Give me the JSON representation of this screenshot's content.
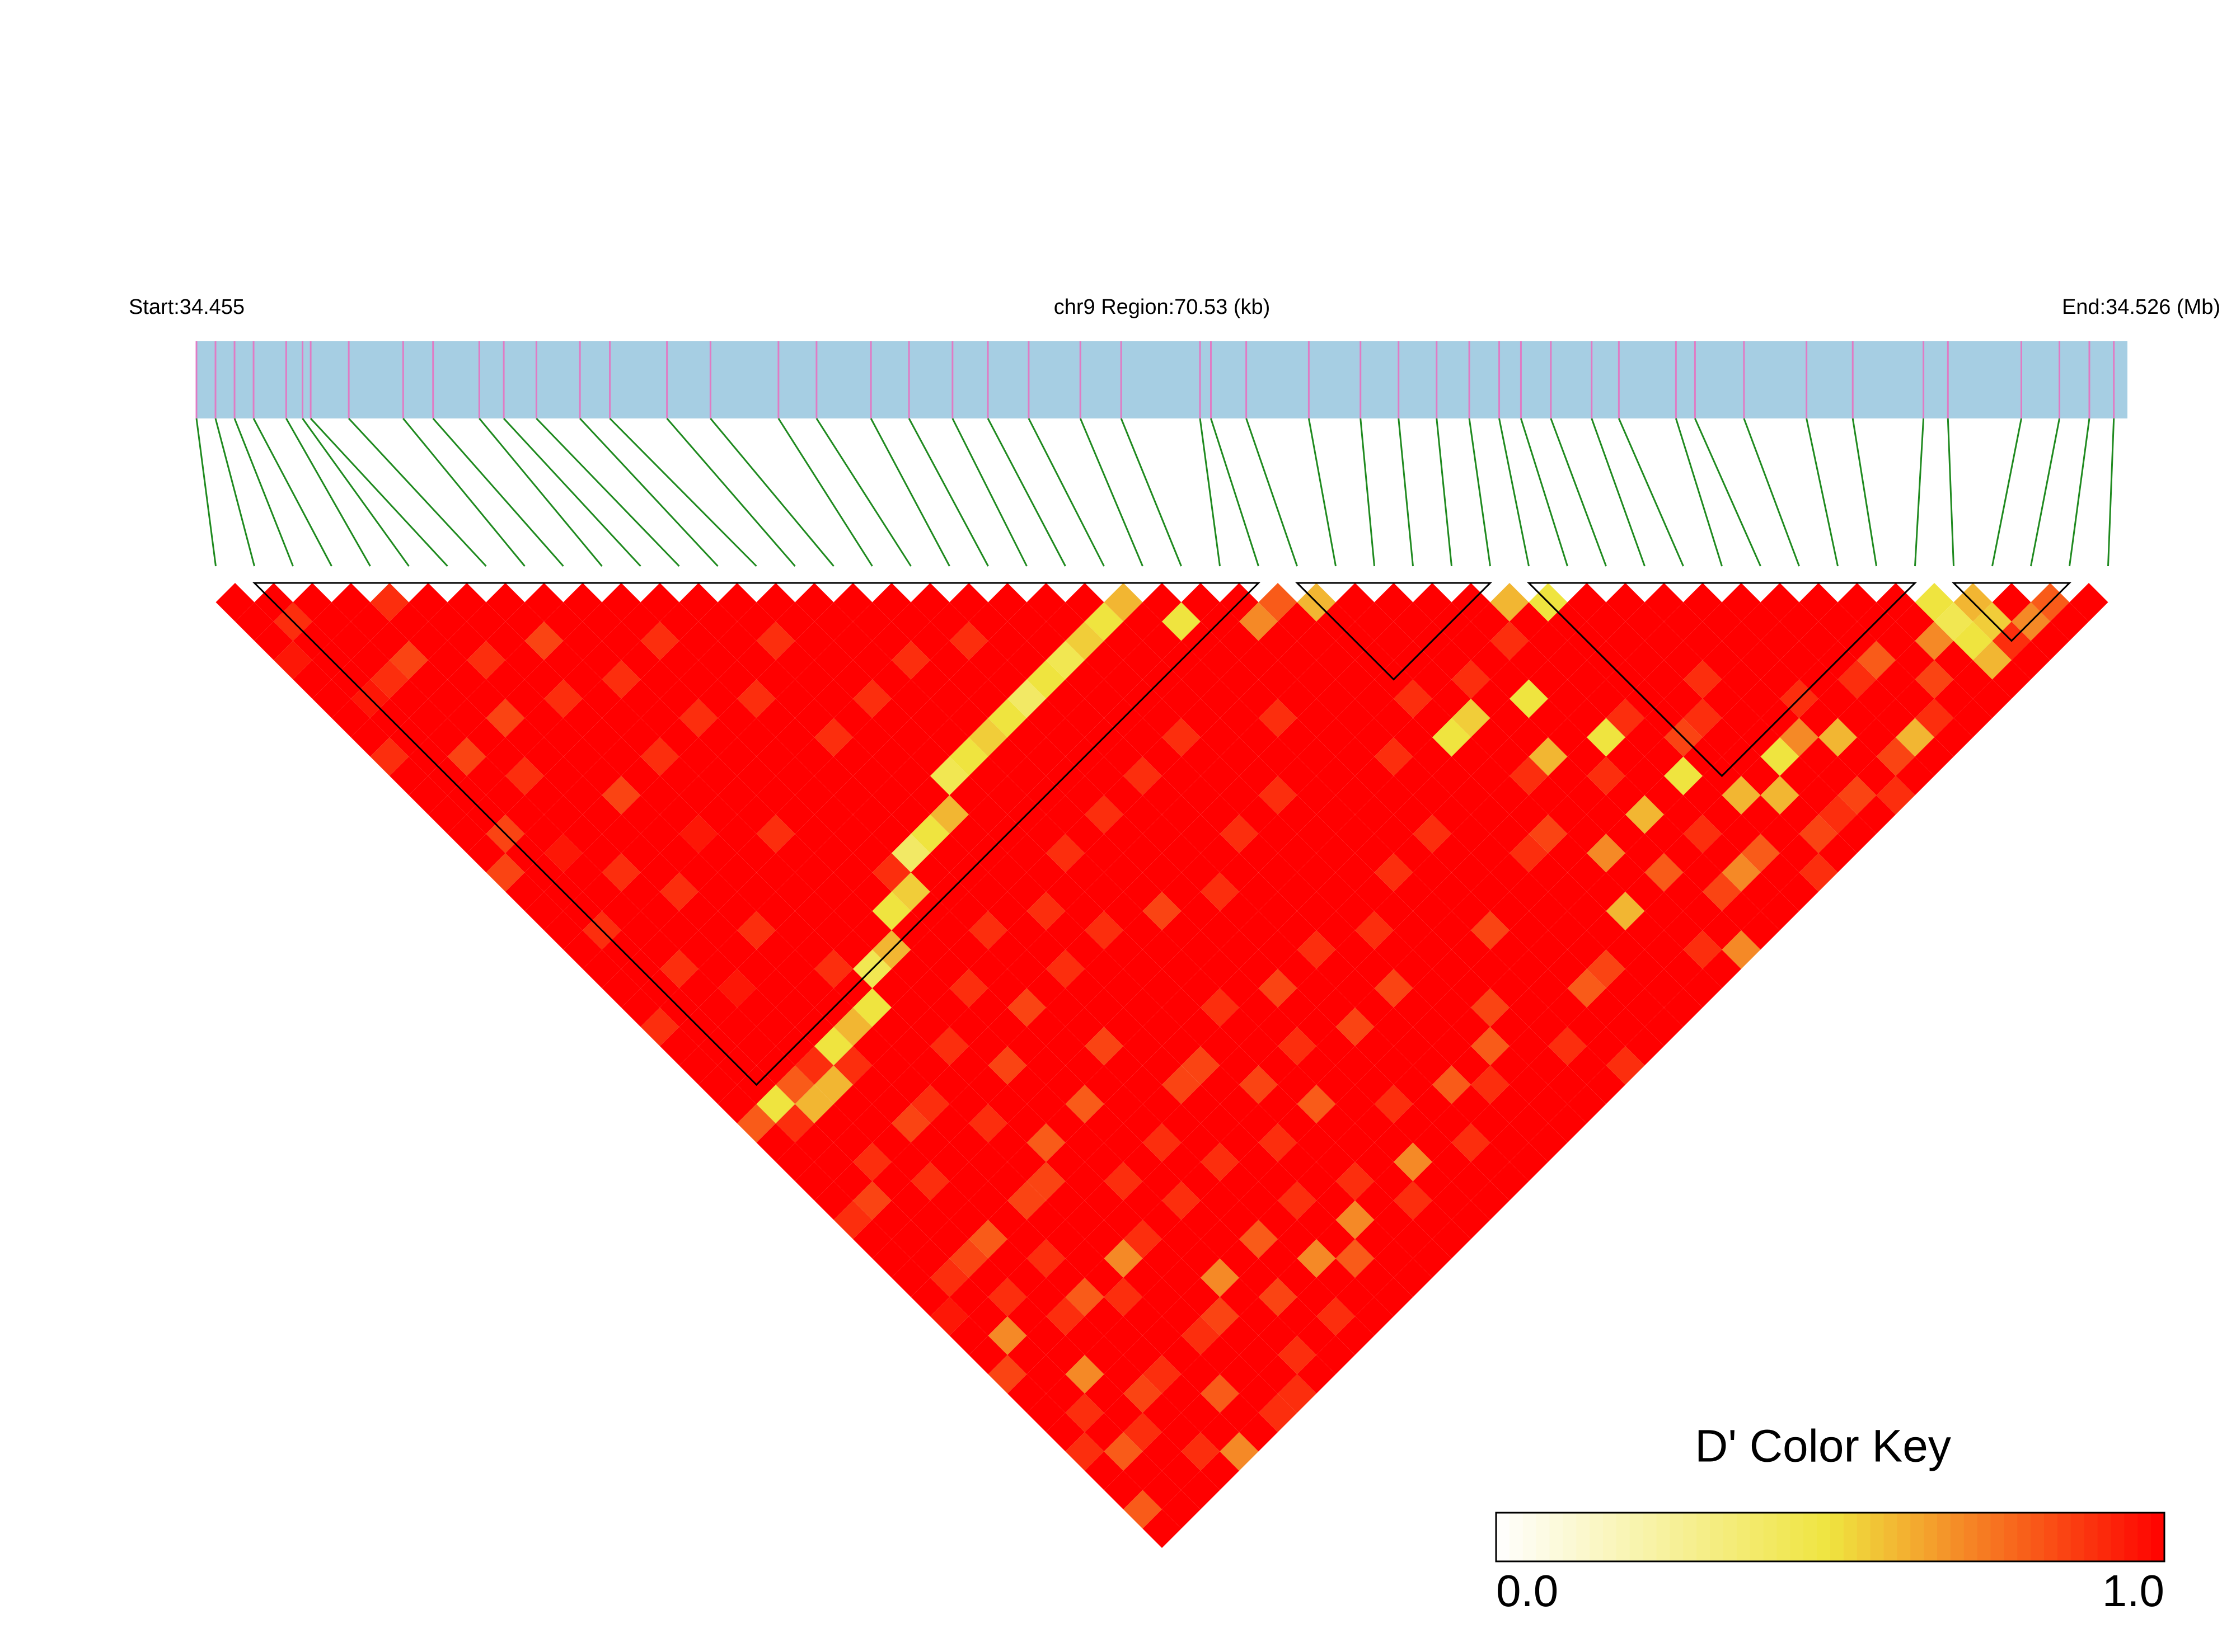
{
  "chart_data": {
    "type": "ld_heatmap",
    "start_label": "Start:34.455",
    "region_label": "chr9 Region:70.53 (kb)",
    "end_label": "End:34.526 (Mb)",
    "xlim": [
      34.455,
      34.526
    ],
    "bar_color": "#a6cee3",
    "marker_color": "#e07bc4",
    "connector_color": "#1f8a1f",
    "positions": [
      34.455,
      34.4557,
      34.4564,
      34.4571,
      34.4583,
      34.4589,
      34.4592,
      34.4606,
      34.4626,
      34.4637,
      34.4654,
      34.4663,
      34.4675,
      34.4691,
      34.4702,
      34.4723,
      34.4739,
      34.4764,
      34.4778,
      34.4798,
      34.4812,
      34.4828,
      34.4841,
      34.4856,
      34.4875,
      34.489,
      34.4919,
      34.4923,
      34.4936,
      34.4959,
      34.4978,
      34.4992,
      34.5006,
      34.5018,
      34.5029,
      34.5037,
      34.5048,
      34.5063,
      34.5073,
      34.5094,
      34.5101,
      34.5119,
      34.5142,
      34.5159,
      34.5185,
      34.5194,
      34.5221,
      34.5235,
      34.5246,
      34.5255
    ],
    "dprime": [
      [
        1,
        1,
        1,
        0.95,
        1,
        1,
        1,
        1,
        0.9,
        1,
        1,
        1,
        1,
        1,
        0.85,
        1,
        1,
        1,
        1,
        1,
        1,
        1,
        0.9,
        1,
        1,
        1,
        1,
        0.8,
        1,
        1,
        1,
        1,
        0.9,
        1,
        1,
        1,
        1,
        0.95,
        1,
        1,
        0.85,
        1,
        1,
        1,
        0.9,
        1,
        1,
        0.8,
        1
      ],
      [
        1,
        0.9,
        1,
        1,
        1,
        0.95,
        1,
        1,
        1,
        1,
        1,
        1,
        0.85,
        1,
        1,
        1,
        1,
        0.9,
        1,
        1,
        1,
        1,
        1,
        1,
        1,
        1,
        0.5,
        0.9,
        1,
        1,
        1,
        0.85,
        1,
        1,
        1,
        0.9,
        1,
        1,
        0.7,
        1,
        1,
        1,
        0.9,
        1,
        0.8,
        1,
        1,
        1
      ],
      [
        1,
        1,
        1,
        1,
        0.9,
        1,
        1,
        1,
        0.85,
        1,
        1,
        1,
        1,
        0.95,
        1,
        1,
        1,
        1,
        1,
        0.9,
        1,
        1,
        1,
        1,
        1,
        0.8,
        0.6,
        1,
        1,
        0.9,
        1,
        1,
        1,
        1,
        0.85,
        1,
        0.9,
        1,
        1,
        1,
        0.7,
        1,
        1,
        0.9,
        1,
        1,
        1
      ],
      [
        1,
        1,
        1,
        0.85,
        1,
        1,
        1,
        1,
        1,
        0.9,
        1,
        1,
        1,
        1,
        0.9,
        1,
        1,
        1,
        1,
        1,
        0.95,
        1,
        1,
        1,
        0.9,
        0.6,
        1,
        1,
        1,
        1,
        0.9,
        1,
        1,
        0.8,
        1,
        1,
        1,
        0.9,
        1,
        1,
        1,
        0.85,
        1,
        1,
        0.9,
        1
      ],
      [
        0.9,
        1,
        1,
        1,
        1,
        1,
        0.85,
        1,
        1,
        1,
        1,
        1,
        1,
        1,
        1,
        0.9,
        1,
        1,
        1,
        1,
        1,
        1,
        1,
        0.5,
        0.9,
        1,
        1,
        0.85,
        1,
        1,
        1,
        1,
        1,
        1,
        0.9,
        1,
        0.8,
        1,
        1,
        1,
        0.9,
        1,
        1,
        1,
        0.7
      ],
      [
        1,
        1,
        1,
        0.9,
        1,
        1,
        1,
        1,
        1,
        1,
        0.85,
        1,
        1,
        1,
        1,
        1,
        1,
        0.9,
        1,
        1,
        1,
        1,
        0.6,
        1,
        1,
        1,
        0.9,
        1,
        1,
        1,
        1,
        0.85,
        1,
        1,
        1,
        1,
        0.9,
        1,
        1,
        1,
        1,
        0.8,
        1,
        1
      ],
      [
        1,
        1,
        1,
        1,
        1,
        0.9,
        1,
        1,
        1,
        1,
        1,
        1,
        0.95,
        1,
        1,
        1,
        1,
        1,
        1,
        0.9,
        1,
        0.5,
        1,
        1,
        1,
        1,
        1,
        0.9,
        1,
        1,
        0.85,
        1,
        1,
        1,
        0.7,
        1,
        1,
        1,
        0.9,
        1,
        1,
        1,
        0.9
      ],
      [
        1,
        1,
        0.85,
        1,
        1,
        1,
        1,
        1,
        0.9,
        1,
        1,
        1,
        1,
        1,
        1,
        1,
        1,
        1,
        1,
        0.45,
        1,
        1,
        1,
        0.9,
        1,
        1,
        1,
        1,
        0.8,
        1,
        1,
        1,
        1,
        0.9,
        1,
        1,
        1,
        0.85,
        1,
        1,
        1,
        0.9
      ],
      [
        1,
        1,
        1,
        1,
        0.9,
        1,
        1,
        1,
        1,
        1,
        1,
        1,
        0.9,
        1,
        1,
        1,
        1,
        1,
        0.6,
        1,
        1,
        1,
        1,
        1,
        0.85,
        1,
        1,
        1,
        1,
        1,
        0.9,
        1,
        1,
        1,
        1,
        0.7,
        1,
        1,
        1,
        0.9,
        1
      ],
      [
        1,
        1,
        1,
        1,
        1,
        1,
        0.9,
        1,
        1,
        1,
        1,
        1,
        1,
        1,
        1,
        1,
        0.5,
        1,
        1,
        1,
        0.9,
        1,
        1,
        1,
        1,
        1,
        0.8,
        1,
        1,
        1,
        1,
        0.9,
        1,
        1,
        1,
        1,
        0.85,
        1,
        1,
        1
      ],
      [
        1,
        1,
        0.9,
        1,
        1,
        1,
        1,
        1,
        1,
        1,
        1,
        1,
        1,
        1,
        0.9,
        0.55,
        1,
        1,
        1,
        1,
        1,
        0.85,
        1,
        1,
        1,
        1,
        1,
        1,
        0.9,
        1,
        1,
        1,
        1,
        0.8,
        1,
        1,
        1,
        0.9,
        1
      ],
      [
        1,
        1,
        1,
        1,
        1,
        0.9,
        1,
        1,
        1,
        1,
        1,
        1,
        1,
        0.4,
        1,
        1,
        1,
        0.9,
        1,
        1,
        1,
        1,
        1,
        0.85,
        1,
        1,
        1,
        1,
        1,
        0.9,
        1,
        1,
        1,
        1,
        0.7,
        1,
        1,
        1
      ],
      [
        1,
        1,
        1,
        1,
        1,
        1,
        1,
        0.9,
        1,
        1,
        1,
        1,
        0.5,
        1,
        1,
        1,
        1,
        1,
        1,
        0.9,
        1,
        1,
        1,
        1,
        1,
        0.85,
        1,
        1,
        1,
        1,
        1,
        0.9,
        1,
        1,
        0.8,
        1,
        1
      ],
      [
        1,
        1,
        0.9,
        1,
        1,
        1,
        1,
        1,
        1,
        1,
        1,
        0.6,
        1,
        1,
        1,
        1,
        0.9,
        1,
        1,
        1,
        1,
        1,
        1,
        1,
        0.85,
        1,
        1,
        1,
        0.9,
        1,
        1,
        1,
        0.7,
        1,
        1,
        1
      ],
      [
        1,
        1,
        1,
        1,
        1,
        0.9,
        1,
        1,
        1,
        0.45,
        1,
        1,
        1,
        1,
        1,
        1,
        1,
        0.9,
        1,
        1,
        1,
        1,
        1,
        1,
        1,
        0.85,
        1,
        1,
        1,
        1,
        0.9,
        1,
        1,
        1,
        1
      ],
      [
        1,
        1,
        1,
        1,
        1,
        1,
        1,
        1,
        0.5,
        1,
        1,
        1,
        1,
        0.9,
        1,
        1,
        1,
        1,
        1,
        1,
        1,
        0.9,
        1,
        1,
        1,
        1,
        0.8,
        1,
        1,
        1,
        1,
        0.9,
        1,
        1
      ],
      [
        1,
        1,
        1,
        0.9,
        1,
        1,
        1,
        0.55,
        1,
        1,
        1,
        1,
        1,
        1,
        1,
        1,
        0.85,
        1,
        1,
        1,
        1,
        1,
        1,
        0.9,
        1,
        1,
        1,
        1,
        1,
        0.7,
        1,
        1,
        1
      ],
      [
        1,
        1,
        1,
        1,
        1,
        1,
        0.5,
        1,
        1,
        1,
        1,
        0.9,
        1,
        1,
        1,
        1,
        1,
        1,
        1,
        1,
        0.85,
        1,
        1,
        1,
        1,
        1,
        0.9,
        1,
        1,
        1,
        1,
        1
      ],
      [
        1,
        1,
        0.9,
        1,
        1,
        0.4,
        1,
        1,
        1,
        1,
        1,
        1,
        1,
        1,
        1,
        0.9,
        1,
        1,
        1,
        1,
        1,
        1,
        0.85,
        1,
        1,
        1,
        1,
        1,
        0.9,
        1,
        1
      ],
      [
        1,
        1,
        1,
        1,
        0.5,
        1,
        1,
        1,
        1,
        0.9,
        1,
        1,
        1,
        1,
        1,
        1,
        1,
        1,
        0.9,
        1,
        1,
        1,
        1,
        1,
        1,
        0.8,
        1,
        1,
        1,
        1
      ],
      [
        1,
        1,
        1,
        0.45,
        1,
        1,
        1,
        1,
        1,
        1,
        1,
        1,
        0.9,
        1,
        1,
        1,
        1,
        1,
        1,
        1,
        0.85,
        1,
        1,
        1,
        1,
        0.9,
        1,
        1,
        1
      ],
      [
        1,
        1,
        0.55,
        1,
        1,
        1,
        1,
        0.9,
        1,
        1,
        1,
        1,
        1,
        1,
        1,
        1,
        1,
        0.9,
        1,
        1,
        1,
        1,
        1,
        0.8,
        1,
        1,
        1,
        1
      ],
      [
        1,
        0.5,
        1,
        1,
        1,
        1,
        1,
        1,
        1,
        1,
        0.9,
        1,
        1,
        1,
        1,
        1,
        1,
        1,
        1,
        1,
        1,
        0.85,
        1,
        1,
        1,
        1,
        1
      ],
      [
        0.6,
        1,
        1,
        1,
        1,
        1,
        1,
        1,
        1,
        1,
        1,
        1,
        1,
        1,
        0.9,
        1,
        1,
        1,
        1,
        1,
        1,
        1,
        1,
        0.9,
        1,
        1
      ],
      [
        1,
        0.5,
        1,
        1,
        1,
        1,
        0.9,
        1,
        1,
        1,
        1,
        1,
        1,
        1,
        1,
        1,
        1,
        0.85,
        1,
        1,
        1,
        1,
        1,
        1,
        0.9
      ],
      [
        1,
        1,
        1,
        1,
        1,
        1,
        1,
        1,
        1,
        1,
        1,
        1,
        0.9,
        1,
        1,
        1,
        1,
        1,
        1,
        1,
        0.8,
        1,
        1,
        1
      ],
      [
        1,
        0.7,
        1,
        1,
        1,
        1,
        1,
        1,
        0.9,
        1,
        1,
        1,
        1,
        1,
        1,
        1,
        1,
        1,
        1,
        0.85,
        1,
        1,
        1
      ],
      [
        0.8,
        1,
        1,
        1,
        1,
        1,
        1,
        1,
        1,
        1,
        1,
        1,
        1,
        0.9,
        1,
        1,
        1,
        1,
        1,
        1,
        1,
        1
      ],
      [
        0.6,
        1,
        1,
        1,
        1,
        0.9,
        1,
        0.5,
        1,
        1,
        1,
        1,
        0.85,
        1,
        1,
        1,
        0.6,
        1,
        1,
        1,
        1
      ],
      [
        1,
        1,
        1,
        1,
        1,
        1,
        0.55,
        1,
        1,
        0.9,
        1,
        1,
        1,
        0.7,
        1,
        1,
        1,
        1,
        0.9,
        1
      ],
      [
        1,
        1,
        1,
        1,
        0.9,
        1,
        1,
        1,
        0.6,
        1,
        1,
        1,
        1,
        1,
        0.8,
        1,
        1,
        1,
        0.7
      ],
      [
        1,
        1,
        1,
        1,
        1,
        0.5,
        1,
        1,
        1,
        0.9,
        1,
        0.6,
        1,
        1,
        1,
        0.85,
        1,
        1
      ],
      [
        1,
        1,
        0.9,
        1,
        1,
        1,
        1,
        0.5,
        1,
        1,
        1,
        1,
        0.9,
        1,
        0.7,
        1,
        1
      ],
      [
        0.6,
        1,
        1,
        1,
        1,
        1,
        0.9,
        1,
        1,
        0.5,
        1,
        1,
        1,
        0.8,
        1,
        1
      ],
      [
        0.5,
        1,
        1,
        1,
        1,
        1,
        1,
        0.85,
        1,
        1,
        0.6,
        1,
        1,
        1,
        0.9
      ],
      [
        1,
        1,
        1,
        1,
        1,
        1,
        0.9,
        1,
        1,
        1,
        0.6,
        1,
        0.85,
        1
      ],
      [
        1,
        1,
        1,
        1,
        0.9,
        1,
        1,
        1,
        0.5,
        1,
        1,
        0.9,
        1
      ],
      [
        1,
        1,
        1,
        1,
        1,
        1,
        1,
        0.7,
        1,
        1,
        0.85,
        1
      ],
      [
        1,
        1,
        1,
        1,
        1,
        0.9,
        1,
        0.6,
        1,
        1,
        0.9
      ],
      [
        1,
        1,
        1,
        1,
        1,
        1,
        1,
        1,
        0.85,
        1
      ],
      [
        1,
        1,
        1,
        1,
        0.9,
        1,
        1,
        0.6,
        1
      ],
      [
        1,
        1,
        1,
        0.8,
        1,
        1,
        0.9,
        1
      ],
      [
        1,
        1,
        1,
        1,
        0.85,
        1,
        1
      ],
      [
        1,
        1,
        0.7,
        1,
        1,
        1
      ],
      [
        0.5,
        0.45,
        0.5,
        0.6,
        1
      ],
      [
        0.6,
        0.55,
        0.9,
        1
      ],
      [
        1,
        0.7,
        1
      ],
      [
        0.8,
        1
      ],
      [
        1
      ]
    ],
    "blocks": [
      [
        1,
        27
      ],
      [
        28,
        33
      ],
      [
        34,
        44
      ],
      [
        45,
        48
      ]
    ],
    "color_key": {
      "title": "D' Color Key",
      "colors": [
        "#ffffff",
        "#efe43f",
        "#ff0000"
      ],
      "ticks": [
        {
          "value": 0,
          "label": "0.0"
        },
        {
          "value": 1,
          "label": "1.0"
        }
      ]
    }
  }
}
